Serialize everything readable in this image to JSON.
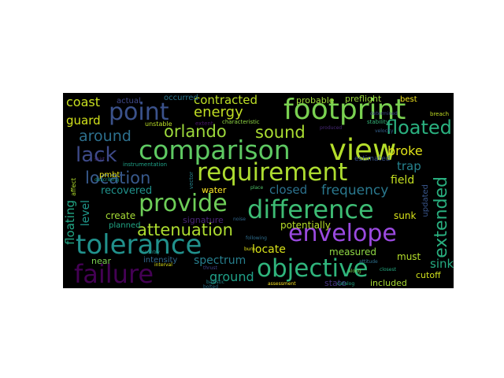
{
  "word_cloud": {
    "background": "#000000",
    "words": [
      {
        "text": "footprint",
        "color": "#7ad151"
      },
      {
        "text": "comparison",
        "color": "#5ec962"
      },
      {
        "text": "view",
        "color": "#b5de2b"
      },
      {
        "text": "requirement",
        "color": "#addc30"
      },
      {
        "text": "difference",
        "color": "#3dbc74"
      },
      {
        "text": "provide",
        "color": "#6ece58"
      },
      {
        "text": "tolerance",
        "color": "#21918c"
      },
      {
        "text": "envelope",
        "color": "#9b4ae0"
      },
      {
        "text": "objective",
        "color": "#2fb47c"
      },
      {
        "text": "failure",
        "color": "#440154"
      },
      {
        "text": "point",
        "color": "#3b528b"
      },
      {
        "text": "orlando",
        "color": "#9dd93b"
      },
      {
        "text": "sound",
        "color": "#aadc32"
      },
      {
        "text": "floated",
        "color": "#2ab07f"
      },
      {
        "text": "lack",
        "color": "#3e4a89"
      },
      {
        "text": "around",
        "color": "#2d708e"
      },
      {
        "text": "location",
        "color": "#38598c"
      },
      {
        "text": "attenuation",
        "color": "#addc30"
      },
      {
        "text": "energy",
        "color": "#c2df23"
      },
      {
        "text": "extended",
        "color": "#29af7f"
      },
      {
        "text": "frequency",
        "color": "#2a788e"
      },
      {
        "text": "spectrum",
        "color": "#277f8e"
      },
      {
        "text": "ground",
        "color": "#1fa088"
      },
      {
        "text": "contracted",
        "color": "#bddf26"
      },
      {
        "text": "coast",
        "color": "#c8e020"
      },
      {
        "text": "guard",
        "color": "#d2e21b"
      },
      {
        "text": "broke",
        "color": "#e2e418"
      },
      {
        "text": "trap",
        "color": "#26828e"
      },
      {
        "text": "field",
        "color": "#c5e021"
      },
      {
        "text": "closed",
        "color": "#2c728e"
      },
      {
        "text": "recovered",
        "color": "#20928c"
      },
      {
        "text": "level",
        "color": "#1f978b"
      },
      {
        "text": "floating",
        "color": "#22a785"
      },
      {
        "text": "locate",
        "color": "#d8e219"
      },
      {
        "text": "potentially",
        "color": "#b8de29"
      },
      {
        "text": "sink",
        "color": "#25ac82"
      },
      {
        "text": "must",
        "color": "#b5de2b"
      },
      {
        "text": "measured",
        "color": "#8fd744"
      },
      {
        "text": "sunk",
        "color": "#d8e219"
      },
      {
        "text": "water",
        "color": "#fde725"
      },
      {
        "text": "create",
        "color": "#a5db36"
      },
      {
        "text": "planned",
        "color": "#21a685"
      },
      {
        "text": "intensity",
        "color": "#31688e"
      },
      {
        "text": "signature",
        "color": "#482475"
      },
      {
        "text": "near",
        "color": "#7ad151"
      },
      {
        "text": "included",
        "color": "#a8db34"
      },
      {
        "text": "cutoff",
        "color": "#d0e11c"
      },
      {
        "text": "state",
        "color": "#46337f"
      },
      {
        "text": "probable",
        "color": "#a0da39"
      },
      {
        "text": "preflight",
        "color": "#9bd93c"
      },
      {
        "text": "best",
        "color": "#f1e51d"
      },
      {
        "text": "occurred",
        "color": "#2a768e"
      },
      {
        "text": "actual",
        "color": "#3f4889"
      },
      {
        "text": "pmbt",
        "color": "#e5e419"
      },
      {
        "text": "updated",
        "color": "#39568c"
      },
      {
        "text": "estimated",
        "color": "#3a548c"
      },
      {
        "text": "unstable",
        "color": "#bddf26"
      },
      {
        "text": "characteristic",
        "color": "#90d743"
      },
      {
        "text": "stability",
        "color": "#35b779"
      },
      {
        "text": "extent",
        "color": "#481668"
      },
      {
        "text": "breach",
        "color": "#c2df23"
      },
      {
        "text": "instrumentation",
        "color": "#1fa187"
      },
      {
        "text": "interval",
        "color": "#dde318"
      },
      {
        "text": "vector",
        "color": "#25848e"
      },
      {
        "text": "affect",
        "color": "#b2dd2d"
      },
      {
        "text": "ballistic",
        "color": "#24868e"
      },
      {
        "text": "following",
        "color": "#2e6e8e"
      },
      {
        "text": "burn",
        "color": "#e7e419"
      },
      {
        "text": "along",
        "color": "#77d153"
      },
      {
        "text": "attitude",
        "color": "#2d708e"
      },
      {
        "text": "place",
        "color": "#50c46a"
      },
      {
        "text": "catalog",
        "color": "#20a486"
      },
      {
        "text": "noise",
        "color": "#31688e"
      },
      {
        "text": "produced",
        "color": "#482878"
      },
      {
        "text": "closest",
        "color": "#25ab82"
      },
      {
        "text": "determined",
        "color": "#3e4c8a"
      },
      {
        "text": "describing",
        "color": "#1f9a8a"
      },
      {
        "text": "thrust",
        "color": "#414487"
      },
      {
        "text": "bolted",
        "color": "#2c728e"
      },
      {
        "text": "assessment",
        "color": "#fde725"
      },
      {
        "text": "country",
        "color": "#21918c"
      },
      {
        "text": "skirt",
        "color": "#472f7d"
      },
      {
        "text": "velocity",
        "color": "#34608d"
      }
    ]
  }
}
